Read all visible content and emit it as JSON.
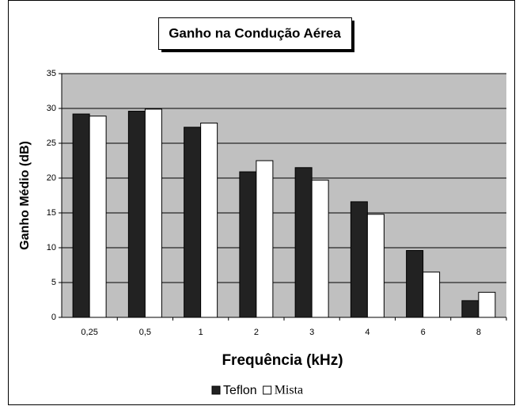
{
  "chart_data": {
    "type": "bar",
    "title": "Ganho na Condução Aérea",
    "x_label": "Frequência (kHz)",
    "y_label": "Ganho Médio (dB)",
    "categories": [
      "0,25",
      "0,5",
      "1",
      "2",
      "3",
      "4",
      "6",
      "8"
    ],
    "series": [
      {
        "name": "Teflon",
        "color": "#222222",
        "values": [
          29.2,
          29.6,
          27.3,
          20.9,
          21.5,
          16.6,
          9.6,
          2.4
        ]
      },
      {
        "name": "Mista",
        "color": "#ffffff",
        "values": [
          28.9,
          29.9,
          27.9,
          22.5,
          19.7,
          14.8,
          6.5,
          3.6
        ]
      }
    ],
    "ylim": [
      0,
      35
    ],
    "yticks": [
      0,
      5,
      10,
      15,
      20,
      25,
      30,
      35
    ],
    "grid": true,
    "plot_background": "#c0c0c0"
  }
}
